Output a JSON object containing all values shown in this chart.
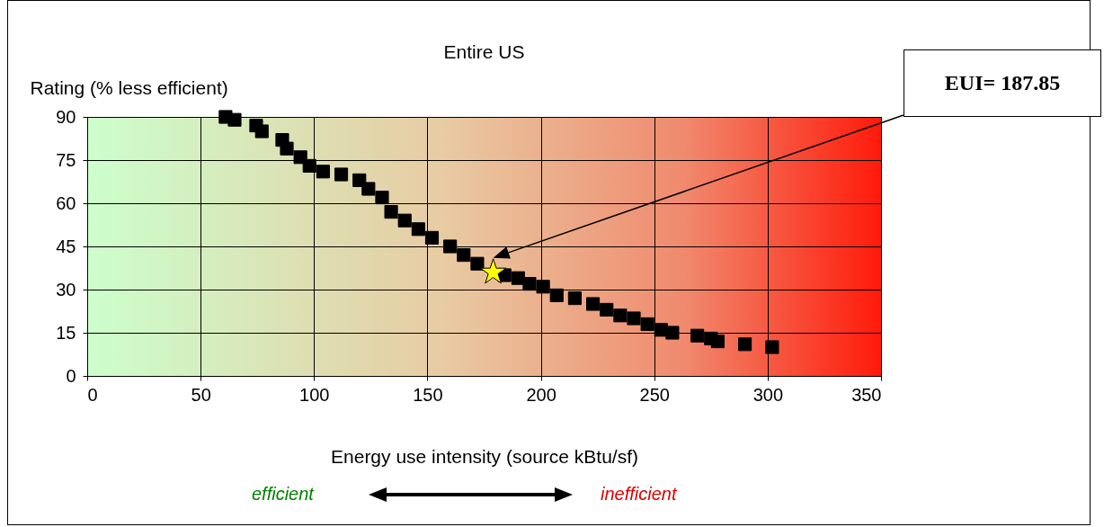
{
  "chart_data": {
    "type": "scatter",
    "title": "Entire US",
    "xlabel": "Energy use intensity (source kBtu/sf)",
    "ylabel": "Rating (% less efficient)",
    "series": [
      {
        "color": "#000000",
        "marker": "square",
        "x": [
          61,
          65,
          74.5,
          77,
          86,
          88,
          94,
          98,
          104,
          112,
          120,
          124,
          130,
          134,
          140,
          146,
          152,
          160,
          166,
          172,
          178,
          184,
          190,
          195,
          201,
          207,
          215,
          223,
          229,
          235,
          241,
          247,
          253,
          258,
          269,
          275,
          278,
          290,
          302
        ],
        "values": [
          90,
          89,
          87,
          85,
          82,
          79,
          76,
          73,
          71,
          70,
          68,
          65,
          62,
          57,
          54,
          51,
          48,
          45,
          42,
          39,
          null,
          35,
          34,
          32,
          31,
          28,
          27,
          25,
          23,
          21,
          20,
          18,
          16,
          15,
          14,
          13,
          12,
          11,
          10
        ]
      },
      {
        "color": "#ffff00",
        "marker": "star",
        "x": [
          179
        ],
        "values": [
          36
        ]
      }
    ],
    "xlim": [
      0,
      350
    ],
    "xticks": [
      0,
      50,
      100,
      150,
      200,
      250,
      300,
      350
    ],
    "ylim": [
      0,
      90
    ],
    "yticks": [
      0,
      15,
      30,
      45,
      60,
      75,
      90
    ],
    "grid": true,
    "annotations": [
      "efficient",
      "inefficient",
      "EUI= 187.85"
    ]
  }
}
